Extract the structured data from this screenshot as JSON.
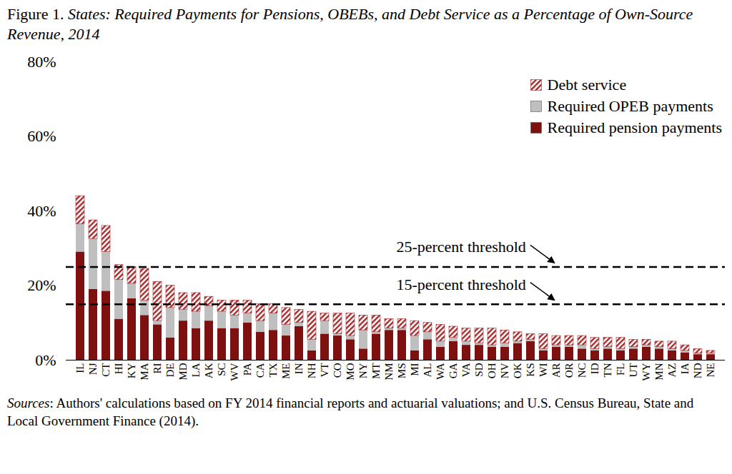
{
  "chart_data": {
    "type": "bar",
    "title": "Figure 1. States: Required Payments for Pensions, OBEBs, and Debt Service as a Percentage of Own-Source Revenue, 2014",
    "source": "Sources: Authors' calculations based on FY 2014 financial reports and actuarial valuations; and U.S. Census Bureau, State and Local Government Finance (2014).",
    "stacked": true,
    "legend": "top-right",
    "grid": false,
    "categories": [
      "IL",
      "NJ",
      "CT",
      "HI",
      "KY",
      "MA",
      "RI",
      "DE",
      "MD",
      "LA",
      "AK",
      "SC",
      "WV",
      "PA",
      "CA",
      "TX",
      "ME",
      "IN",
      "NH",
      "VT",
      "CO",
      "MO",
      "NY",
      "MT",
      "NM",
      "MS",
      "MI",
      "AL",
      "WA",
      "GA",
      "VA",
      "SD",
      "OH",
      "NV",
      "OK",
      "KS",
      "WI",
      "AR",
      "OR",
      "NC",
      "ID",
      "TN",
      "FL",
      "UT",
      "WY",
      "MN",
      "AZ",
      "IA",
      "ND",
      "NE"
    ],
    "series": [
      {
        "name": "Required pension payments",
        "color": "#7f1010",
        "values": [
          29,
          19,
          18.5,
          11,
          16.5,
          12,
          9.5,
          6,
          10.5,
          8.5,
          10.5,
          8.5,
          8.5,
          10,
          7.5,
          8,
          6.5,
          9,
          2.5,
          7,
          6.5,
          5.5,
          3,
          7,
          8,
          8,
          2.5,
          5.5,
          3.5,
          5,
          4,
          4,
          3.5,
          3.5,
          4.5,
          5,
          2.5,
          3.5,
          3.5,
          3,
          2.5,
          3,
          2.5,
          3,
          3.5,
          3,
          2.5,
          2,
          1.5,
          1.5
        ]
      },
      {
        "name": "Required OPEB payments",
        "color": "#bfbfbf",
        "values": [
          7.5,
          13.5,
          10.5,
          10.5,
          4,
          4,
          1,
          8,
          3,
          4.5,
          4,
          4.5,
          3.5,
          2.5,
          3,
          4.5,
          3,
          1,
          3,
          3.5,
          0.5,
          1,
          5,
          0.5,
          0.5,
          0.5,
          4,
          2,
          1.5,
          1,
          1,
          0.5,
          0.5,
          1,
          0.5,
          0.5,
          0.5,
          0.5,
          0.5,
          1,
          0.5,
          0.5,
          0.5,
          0.5,
          0.5,
          0.5,
          0.5,
          0.5,
          0.3,
          0.3
        ]
      },
      {
        "name": "Debt service",
        "color": "#a3282a",
        "values": [
          7.5,
          5,
          7,
          4,
          4.5,
          8.5,
          10.5,
          6,
          4.5,
          5,
          2.5,
          3,
          4,
          3.5,
          4.5,
          2.5,
          4.5,
          3.5,
          7.5,
          2,
          5.5,
          6,
          4,
          4.5,
          2.5,
          2.5,
          4,
          2.5,
          4.5,
          3,
          3.5,
          4,
          4.5,
          3.5,
          2.5,
          1.5,
          4,
          2.5,
          2.5,
          2.5,
          3,
          2.5,
          3,
          2,
          1.5,
          1.5,
          2,
          1.5,
          1.2,
          0.7
        ]
      }
    ],
    "ylim": [
      0,
      80
    ],
    "yticks": [
      {
        "value": 0,
        "label": "0%"
      },
      {
        "value": 20,
        "label": "20%"
      },
      {
        "value": 40,
        "label": "40%"
      },
      {
        "value": 60,
        "label": "60%"
      },
      {
        "value": 80,
        "label": "80%"
      }
    ],
    "annotations": [
      {
        "text": "25-percent threshold",
        "y": 25
      },
      {
        "text": "15-percent threshold",
        "y": 15
      }
    ]
  }
}
